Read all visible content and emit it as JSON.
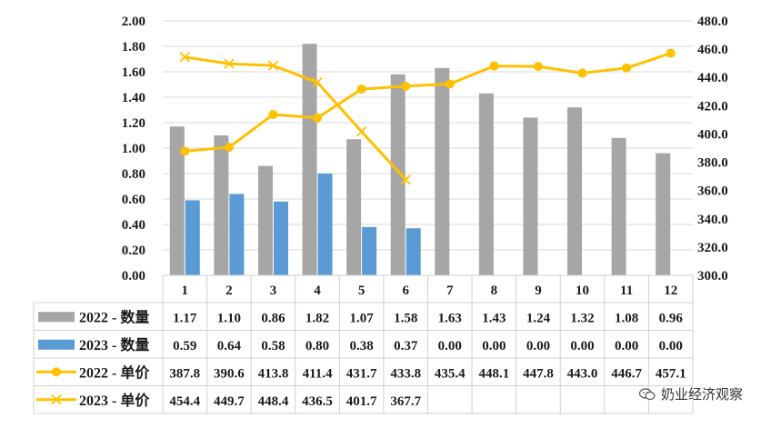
{
  "chart_data": {
    "type": "bar+line",
    "categories": [
      "1",
      "2",
      "3",
      "4",
      "5",
      "6",
      "7",
      "8",
      "9",
      "10",
      "11",
      "12"
    ],
    "left_axis": {
      "min": 0,
      "max": 2,
      "step": 0.2,
      "ticks": [
        "0.00",
        "0.20",
        "0.40",
        "0.60",
        "0.80",
        "1.00",
        "1.20",
        "1.40",
        "1.60",
        "1.80",
        "2.00"
      ]
    },
    "right_axis": {
      "min": 300,
      "max": 480,
      "step": 20,
      "ticks": [
        "300.0",
        "320.0",
        "340.0",
        "360.0",
        "380.0",
        "400.0",
        "420.0",
        "440.0",
        "460.0",
        "480.0"
      ]
    },
    "gridlines": true,
    "series": [
      {
        "name": "2022 - 数量",
        "kind": "bar",
        "axis": "left",
        "color": "#a6a6a6",
        "values": [
          1.17,
          1.1,
          0.86,
          1.82,
          1.07,
          1.58,
          1.63,
          1.43,
          1.24,
          1.32,
          1.08,
          0.96
        ],
        "table": [
          "1.17",
          "1.10",
          "0.86",
          "1.82",
          "1.07",
          "1.58",
          "1.63",
          "1.43",
          "1.24",
          "1.32",
          "1.08",
          "0.96"
        ]
      },
      {
        "name": "2023 - 数量",
        "kind": "bar",
        "axis": "left",
        "color": "#5b9bd5",
        "values": [
          0.59,
          0.64,
          0.58,
          0.8,
          0.38,
          0.37,
          0,
          0,
          0,
          0,
          0,
          0
        ],
        "table": [
          "0.59",
          "0.64",
          "0.58",
          "0.80",
          "0.38",
          "0.37",
          "0.00",
          "0.00",
          "0.00",
          "0.00",
          "0.00",
          "0.00"
        ]
      },
      {
        "name": "2022 - 单价",
        "kind": "line",
        "marker": "circle",
        "axis": "right",
        "color": "#ffc000",
        "values": [
          387.8,
          390.6,
          413.8,
          411.4,
          431.7,
          433.8,
          435.4,
          448.1,
          447.8,
          443.0,
          446.7,
          457.1
        ],
        "table": [
          "387.8",
          "390.6",
          "413.8",
          "411.4",
          "431.7",
          "433.8",
          "435.4",
          "448.1",
          "447.8",
          "443.0",
          "446.7",
          "457.1"
        ]
      },
      {
        "name": "2023 - 单价",
        "kind": "line",
        "marker": "x",
        "axis": "right",
        "color": "#ffc000",
        "values": [
          454.4,
          449.7,
          448.4,
          436.5,
          401.7,
          367.7,
          null,
          null,
          null,
          null,
          null,
          null
        ],
        "table": [
          "454.4",
          "449.7",
          "448.4",
          "436.5",
          "401.7",
          "367.7",
          "",
          "",
          "",
          "",
          "",
          ""
        ]
      }
    ]
  },
  "watermark": {
    "text": "奶业经济观察",
    "icon": "wechat-icon"
  }
}
